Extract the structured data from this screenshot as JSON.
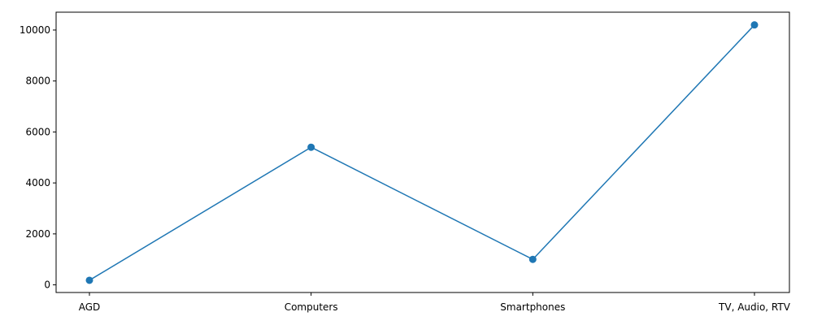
{
  "chart_data": {
    "type": "line",
    "title": "",
    "xlabel": "",
    "ylabel": "",
    "categories": [
      "AGD",
      "Computers",
      "Smartphones",
      "TV, Audio, RTV"
    ],
    "series": [
      {
        "values": [
          180,
          5400,
          1000,
          10200
        ],
        "color": "#1f77b4",
        "marker": "circle"
      }
    ],
    "ylim": [
      -300,
      10700
    ],
    "yticks": [
      0,
      2000,
      4000,
      6000,
      8000,
      10000
    ],
    "ytick_labels": [
      "0",
      "2000",
      "4000",
      "6000",
      "8000",
      "10000"
    ],
    "grid": false,
    "legend": "none"
  }
}
